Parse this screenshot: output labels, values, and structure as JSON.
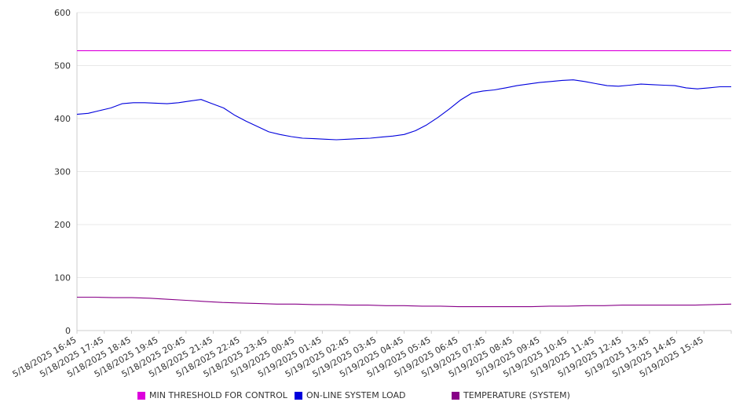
{
  "chart_data": {
    "type": "line",
    "title": "",
    "xlabel": "",
    "ylabel": "",
    "ylim": [
      0,
      600
    ],
    "yticks": [
      0,
      100,
      200,
      300,
      400,
      500,
      600
    ],
    "grid": true,
    "legend_position": "bottom",
    "x_tick_labels": [
      "5/18/2025 16:45",
      "5/18/2025 17:45",
      "5/18/2025 18:45",
      "5/18/2025 19:45",
      "5/18/2025 20:45",
      "5/18/2025 21:45",
      "5/18/2025 22:45",
      "5/18/2025 23:45",
      "5/19/2025 00:45",
      "5/19/2025 01:45",
      "5/19/2025 02:45",
      "5/19/2025 03:45",
      "5/19/2025 04:45",
      "5/19/2025 05:45",
      "5/19/2025 06:45",
      "5/19/2025 07:45",
      "5/19/2025 08:45",
      "5/19/2025 09:45",
      "5/19/2025 10:45",
      "5/19/2025 11:45",
      "5/19/2025 12:45",
      "5/19/2025 13:45",
      "5/19/2025 14:45",
      "5/19/2025 15:45"
    ],
    "x_end": "5/19/2025 16:45",
    "series": [
      {
        "name": "MIN THRESHOLD FOR CONTROL",
        "color": "#dd00dd",
        "values": [
          528,
          528
        ]
      },
      {
        "name": "ON-LINE SYSTEM LOAD",
        "color": "#0000dd",
        "values": [
          408,
          410,
          415,
          420,
          428,
          430,
          430,
          429,
          428,
          430,
          433,
          436,
          428,
          420,
          406,
          395,
          385,
          375,
          370,
          366,
          363,
          362,
          361,
          360,
          361,
          362,
          363,
          365,
          367,
          370,
          377,
          388,
          402,
          418,
          435,
          448,
          452,
          454,
          458,
          462,
          465,
          468,
          470,
          472,
          473,
          470,
          466,
          462,
          461,
          463,
          465,
          464,
          463,
          462,
          458,
          456,
          458,
          460,
          460
        ]
      },
      {
        "name": "TEMPERATURE (SYSTEM)",
        "color": "#880088",
        "values": [
          63,
          63,
          62,
          62,
          61,
          59,
          57,
          55,
          53,
          52,
          51,
          50,
          50,
          49,
          49,
          48,
          48,
          47,
          47,
          46,
          46,
          45,
          45,
          45,
          45,
          45,
          46,
          46,
          47,
          47,
          48,
          48,
          48,
          48,
          48,
          49,
          50
        ]
      }
    ]
  }
}
